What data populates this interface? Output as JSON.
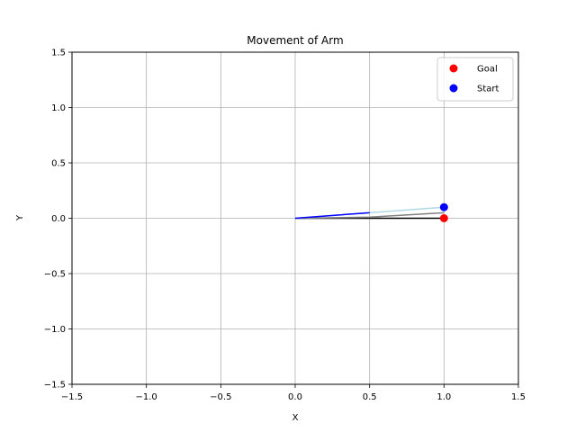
{
  "chart_data": {
    "type": "line",
    "title": "Movement of Arm",
    "xlabel": "X",
    "ylabel": "Y",
    "xlim": [
      -1.5,
      1.5
    ],
    "ylim": [
      -1.5,
      1.5
    ],
    "xticks": [
      -1.5,
      -1.0,
      -0.5,
      0.0,
      0.5,
      1.0,
      1.5
    ],
    "yticks": [
      -1.5,
      -1.0,
      -0.5,
      0.0,
      0.5,
      1.0,
      1.5
    ],
    "xtick_labels": [
      "−1.5",
      "−1.0",
      "−0.5",
      "0.0",
      "0.5",
      "1.0",
      "1.5"
    ],
    "ytick_labels": [
      "−1.5",
      "−1.0",
      "−0.5",
      "0.0",
      "0.5",
      "1.0",
      "1.5"
    ],
    "grid": true,
    "legend_position": "top-right",
    "series": [
      {
        "color": "#000000",
        "x": [
          0.0,
          0.5,
          1.0
        ],
        "y": [
          0.0,
          0.0,
          0.0
        ]
      },
      {
        "color": "#808080",
        "x": [
          0.0,
          0.5,
          1.0
        ],
        "y": [
          0.0,
          0.01,
          0.05
        ]
      },
      {
        "color": "#add8e6",
        "x": [
          0.0,
          0.5,
          1.0
        ],
        "y": [
          0.0,
          0.05,
          0.1
        ]
      },
      {
        "color": "#0000ff",
        "x": [
          0.0,
          0.5
        ],
        "y": [
          0.0,
          0.05
        ]
      }
    ],
    "points": [
      {
        "name": "Goal",
        "color": "#ff0000",
        "x": 1.0,
        "y": 0.0
      },
      {
        "name": "Start",
        "color": "#0000ff",
        "x": 1.0,
        "y": 0.1
      }
    ],
    "legend": [
      {
        "label": "Goal",
        "color": "#ff0000"
      },
      {
        "label": "Start",
        "color": "#0000ff"
      }
    ]
  }
}
